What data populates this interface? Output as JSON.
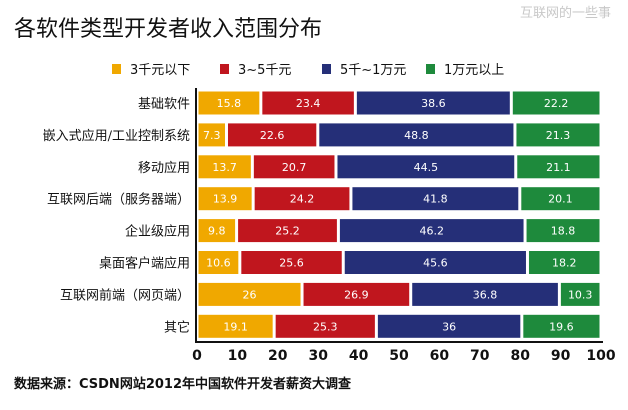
{
  "watermark": "互联网的一些事",
  "chart_data": {
    "type": "bar",
    "orientation": "horizontal",
    "stacked": true,
    "title": "各软件类型开发者收入范围分布",
    "source": "数据来源：CSDN网站2012年中国软件开发者薪资大调查",
    "categories": [
      "基础软件",
      "嵌入式应用/工业控制系统",
      "移动应用",
      "互联网后端（服务器端）",
      "企业级应用",
      "桌面客户端应用",
      "互联网前端（网页端）",
      "其它"
    ],
    "series": [
      {
        "name": "3千元以下",
        "color": "#f0a800",
        "values": [
          15.8,
          7.3,
          13.7,
          13.9,
          9.8,
          10.6,
          26,
          19.1
        ]
      },
      {
        "name": "3~5千元",
        "color": "#c0161e",
        "values": [
          23.4,
          22.6,
          20.7,
          24.2,
          25.2,
          25.6,
          26.9,
          25.3
        ]
      },
      {
        "name": "5千~1万元",
        "color": "#252f78",
        "values": [
          38.6,
          48.8,
          44.5,
          41.8,
          46.2,
          45.6,
          36.8,
          36
        ]
      },
      {
        "name": "1万元以上",
        "color": "#1e8a3c",
        "values": [
          22.2,
          21.3,
          21.1,
          20.1,
          18.8,
          18.2,
          10.3,
          19.6
        ]
      }
    ],
    "xlim": [
      0,
      100
    ],
    "xticks": [
      0,
      10,
      20,
      30,
      40,
      50,
      60,
      70,
      80,
      90,
      100
    ],
    "legend_position": "top",
    "grid": false
  }
}
